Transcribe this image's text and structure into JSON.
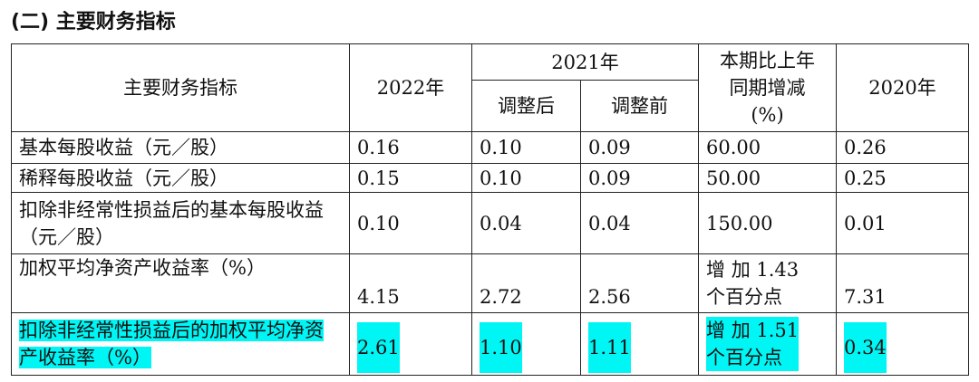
{
  "title": "(二) 主要财务指标",
  "table": {
    "header": {
      "indicator": "主要财务指标",
      "y2022": "2022年",
      "y2021": "2021年",
      "adjusted_after": "调整后",
      "adjusted_before": "调整前",
      "change": [
        "本期比上年",
        "同期增减",
        "(%)"
      ],
      "y2020": "2020年"
    },
    "highlight_color": "#00f5f5",
    "rows": [
      {
        "cells": [
          "基本每股收益（元／股）",
          "0.16",
          "0.10",
          "0.09",
          [
            "60.00"
          ],
          "0.26"
        ]
      },
      {
        "cells": [
          "稀释每股收益（元／股）",
          "0.15",
          "0.10",
          "0.09",
          [
            "50.00"
          ],
          "0.25"
        ]
      },
      {
        "cells": [
          "扣除非经常性损益后的基本每股收益（元／股）",
          "0.10",
          "0.04",
          "0.04",
          [
            "150.00"
          ],
          "0.01"
        ]
      },
      {
        "cells": [
          "加权平均净资产收益率（%）",
          "4.15",
          "2.72",
          "2.56",
          [
            "增 加 1.43",
            "个百分点"
          ],
          "7.31"
        ]
      },
      {
        "cells": [
          "扣除非经常性损益后的加权平均净资产收益率（%）",
          "2.61",
          "1.10",
          "1.11",
          [
            "增 加 1.51",
            "个百分点"
          ],
          "0.34"
        ],
        "highlight": true
      }
    ]
  }
}
